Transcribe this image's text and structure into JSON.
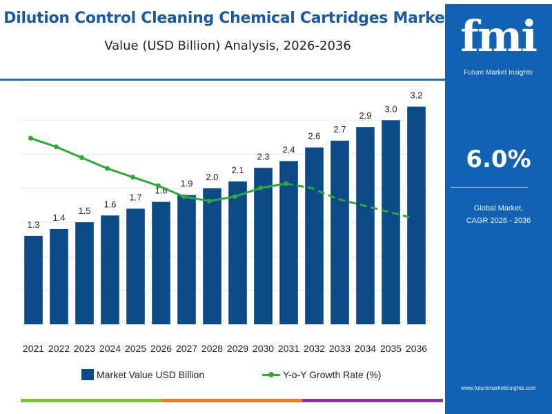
{
  "header": {
    "title": "Dilution Control Cleaning Chemical Cartridges Market",
    "subtitle": "Value (USD Billion) Analysis, 2026-2036"
  },
  "chart_data": {
    "type": "bar",
    "categories": [
      "2021",
      "2022",
      "2023",
      "2024",
      "2025",
      "2026",
      "2027",
      "2028",
      "2029",
      "2030",
      "2031",
      "2032",
      "2033",
      "2034",
      "2035",
      "2036"
    ],
    "series": [
      {
        "name": "Market Value USD Billion",
        "type": "bar",
        "color": "#0d4a88",
        "values": [
          1.3,
          1.4,
          1.5,
          1.6,
          1.7,
          1.8,
          1.9,
          2.0,
          2.1,
          2.3,
          2.4,
          2.6,
          2.7,
          2.9,
          3.0,
          3.2
        ],
        "labels": [
          "1.3",
          "1.4",
          "1.5",
          "1.6",
          "1.7",
          "1.8",
          "1.9",
          "2.0",
          "2.1",
          "2.3",
          "2.4",
          "2.6",
          "2.7",
          "2.9",
          "3.0",
          "3.2"
        ]
      },
      {
        "name": "Y-o-Y Growth Rate (%)",
        "type": "line",
        "color": "#2fa83a",
        "solid_through_index": 10,
        "values": [
          8.6,
          8.2,
          7.7,
          7.2,
          6.8,
          6.4,
          5.9,
          5.7,
          5.9,
          6.3,
          6.5,
          6.3,
          5.8,
          5.5,
          5.2,
          4.9
        ]
      }
    ],
    "ylim": [
      0,
      3.5
    ],
    "y2lim": [
      0,
      11
    ],
    "grid": true,
    "legend_position": "bottom"
  },
  "side_panel": {
    "logo": "fmi",
    "logo_subtitle": "Future Market Insights",
    "cagr_value": "6.0%",
    "cagr_label_line1": "Global Market,",
    "cagr_label_line2": "CAGR 2026 - 2036",
    "website": "www.futuremarketinsights.com",
    "panel_color": "#1262b4"
  },
  "bottom_strip_colors": [
    "#7bbf3a",
    "#e8782a",
    "#8a3a9c"
  ]
}
